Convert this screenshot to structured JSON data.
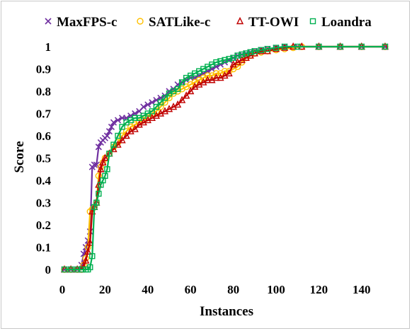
{
  "chart_data": {
    "type": "line",
    "title": "",
    "xlabel": "Instances",
    "ylabel": "Score",
    "xlim": [
      0,
      152
    ],
    "ylim": [
      0,
      1
    ],
    "xticks": [
      "0",
      "20",
      "40",
      "60",
      "80",
      "100",
      "120",
      "140"
    ],
    "yticks": [
      "0",
      "0.1",
      "0.2",
      "0.3",
      "0.4",
      "0.5",
      "0.6",
      "0.7",
      "0.8",
      "0.9",
      "1"
    ],
    "grid": false,
    "legend_position": "top",
    "series": [
      {
        "name": "MaxFPS-c",
        "color": "#7030a0",
        "marker": "x",
        "points": [
          [
            1,
            0
          ],
          [
            4,
            0
          ],
          [
            7,
            0
          ],
          [
            9,
            0.02
          ],
          [
            10,
            0.07
          ],
          [
            11,
            0.1
          ],
          [
            12,
            0.13
          ],
          [
            13,
            0.17
          ],
          [
            14,
            0.46
          ],
          [
            15,
            0.47
          ],
          [
            16,
            0.47
          ],
          [
            17,
            0.55
          ],
          [
            18,
            0.57
          ],
          [
            19,
            0.58
          ],
          [
            20,
            0.59
          ],
          [
            21,
            0.6
          ],
          [
            22,
            0.62
          ],
          [
            23,
            0.64
          ],
          [
            24,
            0.66
          ],
          [
            26,
            0.67
          ],
          [
            28,
            0.68
          ],
          [
            30,
            0.68
          ],
          [
            32,
            0.69
          ],
          [
            34,
            0.7
          ],
          [
            36,
            0.71
          ],
          [
            38,
            0.73
          ],
          [
            40,
            0.74
          ],
          [
            42,
            0.75
          ],
          [
            44,
            0.76
          ],
          [
            46,
            0.77
          ],
          [
            48,
            0.78
          ],
          [
            50,
            0.8
          ],
          [
            52,
            0.81
          ],
          [
            54,
            0.83
          ],
          [
            56,
            0.84
          ],
          [
            58,
            0.85
          ],
          [
            60,
            0.86
          ],
          [
            62,
            0.86
          ],
          [
            64,
            0.87
          ],
          [
            66,
            0.88
          ],
          [
            68,
            0.89
          ],
          [
            70,
            0.9
          ],
          [
            72,
            0.91
          ],
          [
            74,
            0.92
          ],
          [
            76,
            0.93
          ],
          [
            78,
            0.94
          ],
          [
            80,
            0.95
          ],
          [
            82,
            0.96
          ],
          [
            84,
            0.965
          ],
          [
            86,
            0.97
          ],
          [
            88,
            0.975
          ],
          [
            90,
            0.98
          ],
          [
            93,
            0.985
          ],
          [
            96,
            0.99
          ],
          [
            100,
            0.995
          ],
          [
            104,
            1
          ],
          [
            110,
            1
          ],
          [
            120,
            1
          ],
          [
            130,
            1
          ],
          [
            140,
            1
          ],
          [
            151,
            1
          ]
        ]
      },
      {
        "name": "SATLike-c",
        "color": "#ffc000",
        "marker": "circle",
        "points": [
          [
            1,
            0
          ],
          [
            4,
            0
          ],
          [
            7,
            0
          ],
          [
            9,
            0
          ],
          [
            10,
            0.02
          ],
          [
            11,
            0.05
          ],
          [
            12,
            0.1
          ],
          [
            13,
            0.26
          ],
          [
            14,
            0.27
          ],
          [
            15,
            0.28
          ],
          [
            16,
            0.3
          ],
          [
            17,
            0.42
          ],
          [
            18,
            0.46
          ],
          [
            19,
            0.48
          ],
          [
            20,
            0.5
          ],
          [
            22,
            0.52
          ],
          [
            24,
            0.55
          ],
          [
            26,
            0.57
          ],
          [
            28,
            0.6
          ],
          [
            30,
            0.62
          ],
          [
            32,
            0.64
          ],
          [
            34,
            0.65
          ],
          [
            36,
            0.66
          ],
          [
            38,
            0.67
          ],
          [
            40,
            0.68
          ],
          [
            42,
            0.7
          ],
          [
            44,
            0.71
          ],
          [
            46,
            0.73
          ],
          [
            48,
            0.75
          ],
          [
            50,
            0.77
          ],
          [
            52,
            0.79
          ],
          [
            54,
            0.8
          ],
          [
            56,
            0.81
          ],
          [
            58,
            0.82
          ],
          [
            60,
            0.83
          ],
          [
            62,
            0.84
          ],
          [
            64,
            0.85
          ],
          [
            66,
            0.86
          ],
          [
            68,
            0.87
          ],
          [
            70,
            0.87
          ],
          [
            72,
            0.88
          ],
          [
            74,
            0.88
          ],
          [
            76,
            0.89
          ],
          [
            78,
            0.89
          ],
          [
            80,
            0.9
          ],
          [
            82,
            0.91
          ],
          [
            84,
            0.93
          ],
          [
            86,
            0.95
          ],
          [
            88,
            0.96
          ],
          [
            90,
            0.97
          ],
          [
            93,
            0.975
          ],
          [
            96,
            0.98
          ],
          [
            100,
            0.985
          ],
          [
            104,
            0.99
          ],
          [
            108,
            0.995
          ],
          [
            112,
            1
          ],
          [
            120,
            1
          ],
          [
            130,
            1
          ],
          [
            140,
            1
          ],
          [
            151,
            1
          ]
        ]
      },
      {
        "name": "TT-OWI",
        "color": "#c00000",
        "marker": "triangle",
        "points": [
          [
            1,
            0
          ],
          [
            4,
            0
          ],
          [
            7,
            0
          ],
          [
            9,
            0
          ],
          [
            10,
            0.01
          ],
          [
            11,
            0.04
          ],
          [
            12,
            0.08
          ],
          [
            13,
            0.12
          ],
          [
            14,
            0.26
          ],
          [
            15,
            0.28
          ],
          [
            16,
            0.3
          ],
          [
            17,
            0.38
          ],
          [
            18,
            0.45
          ],
          [
            19,
            0.48
          ],
          [
            20,
            0.5
          ],
          [
            22,
            0.52
          ],
          [
            24,
            0.54
          ],
          [
            26,
            0.56
          ],
          [
            28,
            0.58
          ],
          [
            30,
            0.6
          ],
          [
            32,
            0.62
          ],
          [
            34,
            0.63
          ],
          [
            36,
            0.65
          ],
          [
            38,
            0.66
          ],
          [
            40,
            0.67
          ],
          [
            42,
            0.68
          ],
          [
            44,
            0.69
          ],
          [
            46,
            0.7
          ],
          [
            48,
            0.71
          ],
          [
            50,
            0.72
          ],
          [
            52,
            0.73
          ],
          [
            54,
            0.74
          ],
          [
            56,
            0.76
          ],
          [
            58,
            0.78
          ],
          [
            60,
            0.8
          ],
          [
            62,
            0.82
          ],
          [
            64,
            0.83
          ],
          [
            66,
            0.84
          ],
          [
            68,
            0.85
          ],
          [
            70,
            0.85
          ],
          [
            72,
            0.86
          ],
          [
            74,
            0.86
          ],
          [
            76,
            0.87
          ],
          [
            78,
            0.88
          ],
          [
            80,
            0.92
          ],
          [
            82,
            0.93
          ],
          [
            84,
            0.94
          ],
          [
            86,
            0.95
          ],
          [
            88,
            0.96
          ],
          [
            90,
            0.97
          ],
          [
            93,
            0.98
          ],
          [
            96,
            0.98
          ],
          [
            100,
            0.99
          ],
          [
            104,
            0.995
          ],
          [
            108,
            1
          ],
          [
            112,
            1
          ],
          [
            120,
            1
          ],
          [
            130,
            1
          ],
          [
            140,
            1
          ],
          [
            151,
            1
          ]
        ]
      },
      {
        "name": "Loandra",
        "color": "#00b050",
        "marker": "square",
        "points": [
          [
            1,
            0
          ],
          [
            4,
            0
          ],
          [
            7,
            0
          ],
          [
            9,
            0
          ],
          [
            11,
            0
          ],
          [
            12,
            0
          ],
          [
            13,
            0.01
          ],
          [
            14,
            0.06
          ],
          [
            15,
            0.28
          ],
          [
            16,
            0.3
          ],
          [
            17,
            0.34
          ],
          [
            18,
            0.38
          ],
          [
            19,
            0.4
          ],
          [
            20,
            0.42
          ],
          [
            21,
            0.45
          ],
          [
            22,
            0.52
          ],
          [
            24,
            0.56
          ],
          [
            26,
            0.6
          ],
          [
            28,
            0.64
          ],
          [
            30,
            0.66
          ],
          [
            32,
            0.67
          ],
          [
            34,
            0.68
          ],
          [
            36,
            0.68
          ],
          [
            38,
            0.69
          ],
          [
            40,
            0.7
          ],
          [
            42,
            0.71
          ],
          [
            44,
            0.73
          ],
          [
            46,
            0.75
          ],
          [
            48,
            0.77
          ],
          [
            50,
            0.79
          ],
          [
            52,
            0.8
          ],
          [
            54,
            0.81
          ],
          [
            56,
            0.84
          ],
          [
            58,
            0.86
          ],
          [
            60,
            0.87
          ],
          [
            62,
            0.88
          ],
          [
            64,
            0.89
          ],
          [
            66,
            0.9
          ],
          [
            68,
            0.91
          ],
          [
            70,
            0.92
          ],
          [
            72,
            0.93
          ],
          [
            74,
            0.935
          ],
          [
            76,
            0.94
          ],
          [
            78,
            0.945
          ],
          [
            80,
            0.95
          ],
          [
            82,
            0.96
          ],
          [
            84,
            0.965
          ],
          [
            86,
            0.97
          ],
          [
            88,
            0.975
          ],
          [
            90,
            0.98
          ],
          [
            93,
            0.985
          ],
          [
            96,
            0.99
          ],
          [
            100,
            0.995
          ],
          [
            104,
            1
          ],
          [
            110,
            1
          ],
          [
            120,
            1
          ],
          [
            130,
            1
          ],
          [
            140,
            1
          ],
          [
            151,
            1
          ]
        ]
      }
    ]
  }
}
